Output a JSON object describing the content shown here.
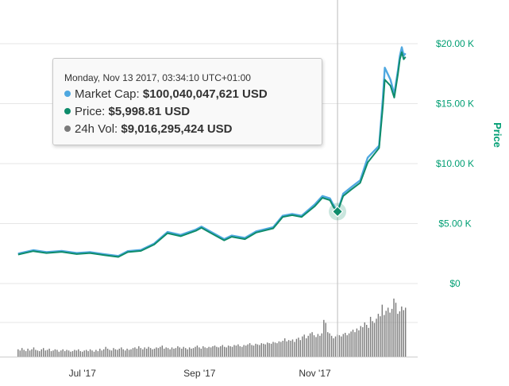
{
  "colors": {
    "market_cap": "#4fa8e0",
    "price": "#0e8c6b",
    "volume": "#7a7a7a",
    "price_axis": "#009e73",
    "grid": "#e6e6e6",
    "text": "#333333"
  },
  "tooltip": {
    "date": "Monday, Nov 13 2017, 03:34:10 UTC+01:00",
    "rows": [
      {
        "label": "Market Cap:",
        "value": "$100,040,047,621 USD",
        "color": "#4fa8e0"
      },
      {
        "label": "Price:",
        "value": "$5,998.81 USD",
        "color": "#0e8c6b"
      },
      {
        "label": "24h Vol:",
        "value": "$9,016,295,424 USD",
        "color": "#7a7a7a"
      }
    ]
  },
  "chart_data": {
    "type": "line",
    "x_tick_labels": [
      "Jul '17",
      "Sep '17",
      "Nov '17"
    ],
    "y_right_label": "Price",
    "y_right_tick_labels": [
      "$0",
      "$5.00 K",
      "$10.00 K",
      "$15.00 K",
      "$20.00 K"
    ],
    "ylim": [
      0,
      20000
    ],
    "grid": true,
    "crosshair_date": "2017-11-13",
    "series": [
      {
        "name": "Market Cap",
        "note": "plotted on the same visual scale as price",
        "points": [
          [
            "2017-05-28",
            2500
          ],
          [
            "2017-06-05",
            2780
          ],
          [
            "2017-06-12",
            2620
          ],
          [
            "2017-06-20",
            2720
          ],
          [
            "2017-06-28",
            2540
          ],
          [
            "2017-07-05",
            2620
          ],
          [
            "2017-07-13",
            2440
          ],
          [
            "2017-07-20",
            2300
          ],
          [
            "2017-07-25",
            2700
          ],
          [
            "2017-08-01",
            2800
          ],
          [
            "2017-08-08",
            3330
          ],
          [
            "2017-08-15",
            4300
          ],
          [
            "2017-08-22",
            4050
          ],
          [
            "2017-08-30",
            4500
          ],
          [
            "2017-09-02",
            4750
          ],
          [
            "2017-09-06",
            4400
          ],
          [
            "2017-09-14",
            3700
          ],
          [
            "2017-09-18",
            4000
          ],
          [
            "2017-09-25",
            3800
          ],
          [
            "2017-10-01",
            4350
          ],
          [
            "2017-10-10",
            4700
          ],
          [
            "2017-10-15",
            5650
          ],
          [
            "2017-10-20",
            5800
          ],
          [
            "2017-10-25",
            5650
          ],
          [
            "2017-11-01",
            6600
          ],
          [
            "2017-11-05",
            7300
          ],
          [
            "2017-11-09",
            7100
          ],
          [
            "2017-11-11",
            6500
          ],
          [
            "2017-11-13",
            5990
          ],
          [
            "2017-11-16",
            7500
          ],
          [
            "2017-11-20",
            8000
          ],
          [
            "2017-11-25",
            8600
          ],
          [
            "2017-11-29",
            10500
          ],
          [
            "2017-12-05",
            11500
          ],
          [
            "2017-12-07",
            15500
          ],
          [
            "2017-12-08",
            18000
          ],
          [
            "2017-12-11",
            17000
          ],
          [
            "2017-12-13",
            15800
          ],
          [
            "2017-12-15",
            17800
          ],
          [
            "2017-12-16",
            19000
          ],
          [
            "2017-12-17",
            19700
          ],
          [
            "2017-12-18",
            19000
          ],
          [
            "2017-12-19",
            19200
          ]
        ]
      },
      {
        "name": "Price",
        "points": [
          [
            "2017-05-28",
            2420
          ],
          [
            "2017-06-05",
            2700
          ],
          [
            "2017-06-12",
            2540
          ],
          [
            "2017-06-20",
            2640
          ],
          [
            "2017-06-28",
            2460
          ],
          [
            "2017-07-05",
            2540
          ],
          [
            "2017-07-13",
            2360
          ],
          [
            "2017-07-20",
            2220
          ],
          [
            "2017-07-25",
            2620
          ],
          [
            "2017-08-01",
            2720
          ],
          [
            "2017-08-08",
            3250
          ],
          [
            "2017-08-15",
            4200
          ],
          [
            "2017-08-22",
            3950
          ],
          [
            "2017-08-30",
            4400
          ],
          [
            "2017-09-02",
            4650
          ],
          [
            "2017-09-06",
            4300
          ],
          [
            "2017-09-14",
            3600
          ],
          [
            "2017-09-18",
            3900
          ],
          [
            "2017-09-25",
            3700
          ],
          [
            "2017-10-01",
            4250
          ],
          [
            "2017-10-10",
            4600
          ],
          [
            "2017-10-15",
            5550
          ],
          [
            "2017-10-20",
            5700
          ],
          [
            "2017-10-25",
            5550
          ],
          [
            "2017-11-01",
            6450
          ],
          [
            "2017-11-05",
            7150
          ],
          [
            "2017-11-09",
            6950
          ],
          [
            "2017-11-11",
            6350
          ],
          [
            "2017-11-13",
            5999
          ],
          [
            "2017-11-16",
            7300
          ],
          [
            "2017-11-20",
            7800
          ],
          [
            "2017-11-25",
            8400
          ],
          [
            "2017-11-29",
            10100
          ],
          [
            "2017-12-05",
            11300
          ],
          [
            "2017-12-07",
            14800
          ],
          [
            "2017-12-08",
            17000
          ],
          [
            "2017-12-11",
            16500
          ],
          [
            "2017-12-13",
            15500
          ],
          [
            "2017-12-15",
            17500
          ],
          [
            "2017-12-16",
            18700
          ],
          [
            "2017-12-17",
            19300
          ],
          [
            "2017-12-18",
            18700
          ],
          [
            "2017-12-19",
            18900
          ]
        ]
      }
    ],
    "volume": {
      "name": "24h Vol",
      "start_date": "2017-05-28",
      "end_date": "2017-12-19",
      "relative_heights": [
        0.12,
        0.1,
        0.14,
        0.11,
        0.09,
        0.13,
        0.1,
        0.12,
        0.15,
        0.11,
        0.1,
        0.09,
        0.12,
        0.14,
        0.1,
        0.11,
        0.13,
        0.09,
        0.1,
        0.12,
        0.11,
        0.08,
        0.1,
        0.12,
        0.09,
        0.11,
        0.1,
        0.08,
        0.09,
        0.11,
        0.1,
        0.12,
        0.09,
        0.08,
        0.1,
        0.11,
        0.09,
        0.12,
        0.1,
        0.08,
        0.11,
        0.09,
        0.13,
        0.1,
        0.12,
        0.16,
        0.13,
        0.11,
        0.1,
        0.14,
        0.12,
        0.11,
        0.13,
        0.15,
        0.12,
        0.1,
        0.13,
        0.11,
        0.12,
        0.14,
        0.15,
        0.13,
        0.17,
        0.14,
        0.12,
        0.15,
        0.13,
        0.16,
        0.14,
        0.12,
        0.13,
        0.15,
        0.14,
        0.16,
        0.18,
        0.13,
        0.15,
        0.14,
        0.12,
        0.15,
        0.13,
        0.14,
        0.17,
        0.15,
        0.13,
        0.16,
        0.14,
        0.12,
        0.15,
        0.13,
        0.14,
        0.16,
        0.18,
        0.15,
        0.13,
        0.17,
        0.15,
        0.14,
        0.16,
        0.15,
        0.17,
        0.18,
        0.16,
        0.15,
        0.17,
        0.19,
        0.16,
        0.15,
        0.18,
        0.17,
        0.16,
        0.19,
        0.18,
        0.2,
        0.17,
        0.16,
        0.19,
        0.18,
        0.2,
        0.22,
        0.19,
        0.18,
        0.21,
        0.2,
        0.19,
        0.22,
        0.21,
        0.2,
        0.23,
        0.22,
        0.21,
        0.24,
        0.23,
        0.22,
        0.25,
        0.24,
        0.26,
        0.3,
        0.25,
        0.27,
        0.26,
        0.28,
        0.24,
        0.29,
        0.31,
        0.27,
        0.33,
        0.36,
        0.3,
        0.34,
        0.38,
        0.4,
        0.35,
        0.32,
        0.37,
        0.34,
        0.38,
        0.6,
        0.55,
        0.4,
        0.38,
        0.34,
        0.3,
        0.33,
        0.36,
        0.35,
        0.33,
        0.37,
        0.39,
        0.35,
        0.38,
        0.41,
        0.44,
        0.4,
        0.46,
        0.43,
        0.5,
        0.48,
        0.56,
        0.52,
        0.47,
        0.65,
        0.58,
        0.55,
        0.62,
        0.7,
        0.66,
        0.85,
        0.68,
        0.75,
        0.8,
        0.72,
        0.78,
        0.95,
        0.88,
        0.7,
        0.74,
        0.82,
        0.76,
        0.8
      ]
    }
  }
}
